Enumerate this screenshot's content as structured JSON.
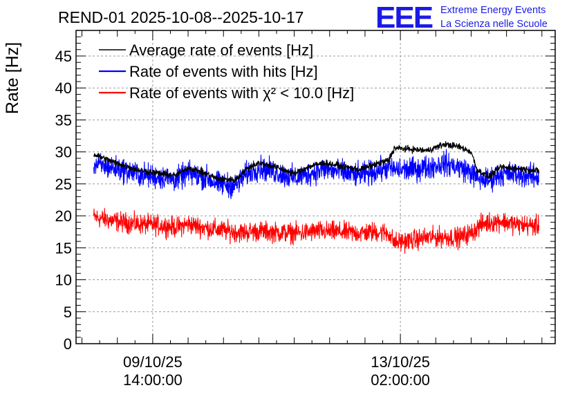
{
  "header": {
    "title": "REND-01 2025-10-08--2025-10-17",
    "logo_text": "EEE",
    "org_line1": "Extreme Energy Events",
    "org_line2": "La Scienza nelle Scuole"
  },
  "chart_data": {
    "type": "line",
    "title": "REND-01 2025-10-08--2025-10-17",
    "xlabel": "",
    "ylabel": "Rate [Hz]",
    "ylim": [
      0,
      49
    ],
    "yticks": [
      0,
      5,
      10,
      15,
      20,
      25,
      30,
      35,
      40,
      45
    ],
    "grid": true,
    "legend_position": "top-left",
    "x_range_hours": [
      -26,
      136.5
    ],
    "x_ticks": [
      {
        "hours": 0,
        "date": "09/10/25",
        "time": "14:00:00"
      },
      {
        "hours": 84,
        "date": "13/10/25",
        "time": "02:00:00"
      }
    ],
    "x_data_range_hours": [
      -20,
      131
    ],
    "series": [
      {
        "name": "Average rate of events [Hz]",
        "legend": "Average rate of events [Hz]",
        "color": "#000000",
        "noise": 0.3,
        "keypoints": [
          [
            -20,
            29.6
          ],
          [
            -12,
            28.2
          ],
          [
            -5,
            27.2
          ],
          [
            3,
            26.6
          ],
          [
            8,
            26.3
          ],
          [
            12,
            27.6
          ],
          [
            18,
            26.6
          ],
          [
            22,
            25.8
          ],
          [
            28,
            25.6
          ],
          [
            32,
            27.4
          ],
          [
            36,
            28.3
          ],
          [
            42,
            27.6
          ],
          [
            48,
            26.6
          ],
          [
            53,
            27.7
          ],
          [
            58,
            28.3
          ],
          [
            64,
            27.8
          ],
          [
            70,
            27.2
          ],
          [
            76,
            28.1
          ],
          [
            80,
            28.7
          ],
          [
            82,
            30.6
          ],
          [
            88,
            30.4
          ],
          [
            93,
            30.2
          ],
          [
            99,
            31.2
          ],
          [
            104,
            30.8
          ],
          [
            108,
            30.0
          ],
          [
            110,
            27.2
          ],
          [
            114,
            26.1
          ],
          [
            118,
            27.6
          ],
          [
            124,
            27.4
          ],
          [
            131,
            27.0
          ]
        ]
      },
      {
        "name": "Rate of events with hits [Hz]",
        "legend": "Rate of events with hits [Hz]",
        "color": "#0000ff",
        "noise": 1.15,
        "keypoints": [
          [
            -20,
            28.0
          ],
          [
            -12,
            27.4
          ],
          [
            -5,
            26.5
          ],
          [
            3,
            26.0
          ],
          [
            8,
            25.7
          ],
          [
            12,
            26.6
          ],
          [
            18,
            26.0
          ],
          [
            22,
            25.0
          ],
          [
            28,
            24.7
          ],
          [
            32,
            26.6
          ],
          [
            36,
            27.5
          ],
          [
            42,
            26.8
          ],
          [
            48,
            25.9
          ],
          [
            53,
            26.6
          ],
          [
            58,
            27.3
          ],
          [
            64,
            26.8
          ],
          [
            70,
            26.3
          ],
          [
            76,
            27.0
          ],
          [
            80,
            27.6
          ],
          [
            82,
            27.2
          ],
          [
            88,
            27.2
          ],
          [
            93,
            27.6
          ],
          [
            99,
            28.2
          ],
          [
            104,
            27.6
          ],
          [
            108,
            26.8
          ],
          [
            110,
            25.9
          ],
          [
            114,
            25.6
          ],
          [
            118,
            26.6
          ],
          [
            124,
            26.5
          ],
          [
            131,
            26.0
          ]
        ]
      },
      {
        "name": "Rate of events with chi2 < 10.0 [Hz]",
        "legend": "Rate of events with χ² < 10.0 [Hz]",
        "color": "#ff0000",
        "noise": 0.95,
        "keypoints": [
          [
            -20,
            19.8
          ],
          [
            -12,
            19.1
          ],
          [
            -5,
            18.7
          ],
          [
            3,
            18.5
          ],
          [
            8,
            18.2
          ],
          [
            12,
            18.7
          ],
          [
            18,
            18.1
          ],
          [
            24,
            17.7
          ],
          [
            30,
            17.4
          ],
          [
            36,
            17.6
          ],
          [
            42,
            17.4
          ],
          [
            50,
            17.3
          ],
          [
            56,
            17.6
          ],
          [
            62,
            17.5
          ],
          [
            70,
            17.3
          ],
          [
            76,
            17.5
          ],
          [
            80,
            17.3
          ],
          [
            82,
            15.8
          ],
          [
            88,
            16.2
          ],
          [
            93,
            16.6
          ],
          [
            99,
            16.7
          ],
          [
            104,
            16.6
          ],
          [
            108,
            17.3
          ],
          [
            112,
            18.8
          ],
          [
            118,
            19.2
          ],
          [
            124,
            18.6
          ],
          [
            131,
            18.4
          ]
        ]
      }
    ]
  }
}
